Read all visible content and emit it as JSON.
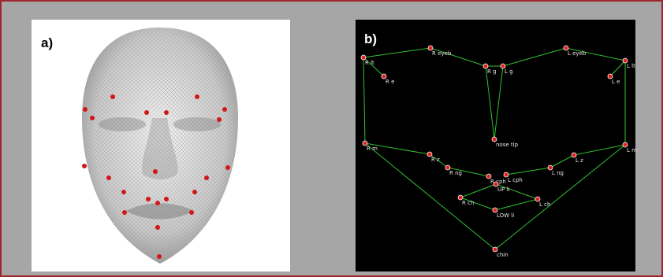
{
  "panels": [
    {
      "label": "a)"
    },
    {
      "label": "b)",
      "nodes": [
        {
          "label": "R lt"
        },
        {
          "label": "R eyeb"
        },
        {
          "label": "R e"
        },
        {
          "label": "R g"
        },
        {
          "label": "L g"
        },
        {
          "label": "L eyeb"
        },
        {
          "label": "L lt"
        },
        {
          "label": "L e"
        },
        {
          "label": "nose tip"
        },
        {
          "label": "R m"
        },
        {
          "label": "L m"
        },
        {
          "label": "R z"
        },
        {
          "label": "L z"
        },
        {
          "label": "R ng"
        },
        {
          "label": "L ng"
        },
        {
          "label": "R cph"
        },
        {
          "label": "L cph"
        },
        {
          "label": "UP li"
        },
        {
          "label": "R ch"
        },
        {
          "label": "L ch"
        },
        {
          "label": "LOW li"
        },
        {
          "label": "chin"
        }
      ]
    }
  ]
}
